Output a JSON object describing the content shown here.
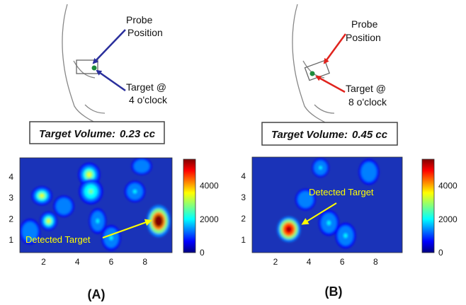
{
  "panels": [
    {
      "id": "A",
      "probe_label": [
        "Probe",
        "Position"
      ],
      "target_label": [
        "Target @",
        "4 o'clock"
      ],
      "arrow_color": "#2a2f9c",
      "volume_label": "Target Volume:",
      "volume_value": "0.23 cc",
      "detected_label": "Detected Target",
      "x_ticks": [
        "2",
        "4",
        "6",
        "8"
      ],
      "y_ticks": [
        "1",
        "2",
        "3",
        "4"
      ],
      "colorbar_ticks": [
        "0",
        "2000",
        "4000"
      ],
      "caption": "(A)",
      "blobs": [
        {
          "x": 8.8,
          "y": 1.9,
          "sx": 0.35,
          "sy": 0.38,
          "v": 5600
        },
        {
          "x": 1.9,
          "y": 3.1,
          "sx": 0.3,
          "sy": 0.22,
          "v": 2500
        },
        {
          "x": 2.3,
          "y": 1.9,
          "sx": 0.25,
          "sy": 0.22,
          "v": 2800
        },
        {
          "x": 4.7,
          "y": 4.1,
          "sx": 0.32,
          "sy": 0.28,
          "v": 2600
        },
        {
          "x": 4.8,
          "y": 3.3,
          "sx": 0.35,
          "sy": 0.3,
          "v": 2000
        },
        {
          "x": 7.4,
          "y": 3.3,
          "sx": 0.3,
          "sy": 0.25,
          "v": 1200
        },
        {
          "x": 5.2,
          "y": 1.9,
          "sx": 0.25,
          "sy": 0.3,
          "v": 900
        },
        {
          "x": 6.0,
          "y": 1.1,
          "sx": 0.28,
          "sy": 0.3,
          "v": 1000
        },
        {
          "x": 7.8,
          "y": 4.5,
          "sx": 0.3,
          "sy": 0.2,
          "v": 800
        },
        {
          "x": 3.2,
          "y": 2.6,
          "sx": 0.3,
          "sy": 0.25,
          "v": 600
        },
        {
          "x": 1.2,
          "y": 1.4,
          "sx": 0.3,
          "sy": 0.3,
          "v": 500
        }
      ]
    },
    {
      "id": "B",
      "probe_label": [
        "Probe",
        "Position"
      ],
      "target_label": [
        "Target @",
        "8 o'clock"
      ],
      "arrow_color": "#e0231d",
      "volume_label": "Target Volume:",
      "volume_value": "0.45 cc",
      "detected_label": "Detected Target",
      "x_ticks": [
        "2",
        "4",
        "6",
        "8"
      ],
      "y_ticks": [
        "1",
        "2",
        "3",
        "4"
      ],
      "colorbar_ticks": [
        "0",
        "2000",
        "4000"
      ],
      "caption": "(B)",
      "blobs": [
        {
          "x": 2.8,
          "y": 1.5,
          "sx": 0.35,
          "sy": 0.3,
          "v": 5200
        },
        {
          "x": 5.2,
          "y": 1.8,
          "sx": 0.3,
          "sy": 0.3,
          "v": 1100
        },
        {
          "x": 6.2,
          "y": 1.2,
          "sx": 0.3,
          "sy": 0.3,
          "v": 900
        },
        {
          "x": 4.7,
          "y": 4.4,
          "sx": 0.25,
          "sy": 0.22,
          "v": 900
        },
        {
          "x": 7.6,
          "y": 4.2,
          "sx": 0.3,
          "sy": 0.3,
          "v": 700
        },
        {
          "x": 3.8,
          "y": 2.9,
          "sx": 0.3,
          "sy": 0.25,
          "v": 500
        }
      ]
    }
  ],
  "colormap": [
    "#000080",
    "#0000ff",
    "#0080ff",
    "#00ffff",
    "#80ff80",
    "#ffff00",
    "#ff8000",
    "#ff0000",
    "#800000"
  ],
  "map_background": "#1a33b8"
}
